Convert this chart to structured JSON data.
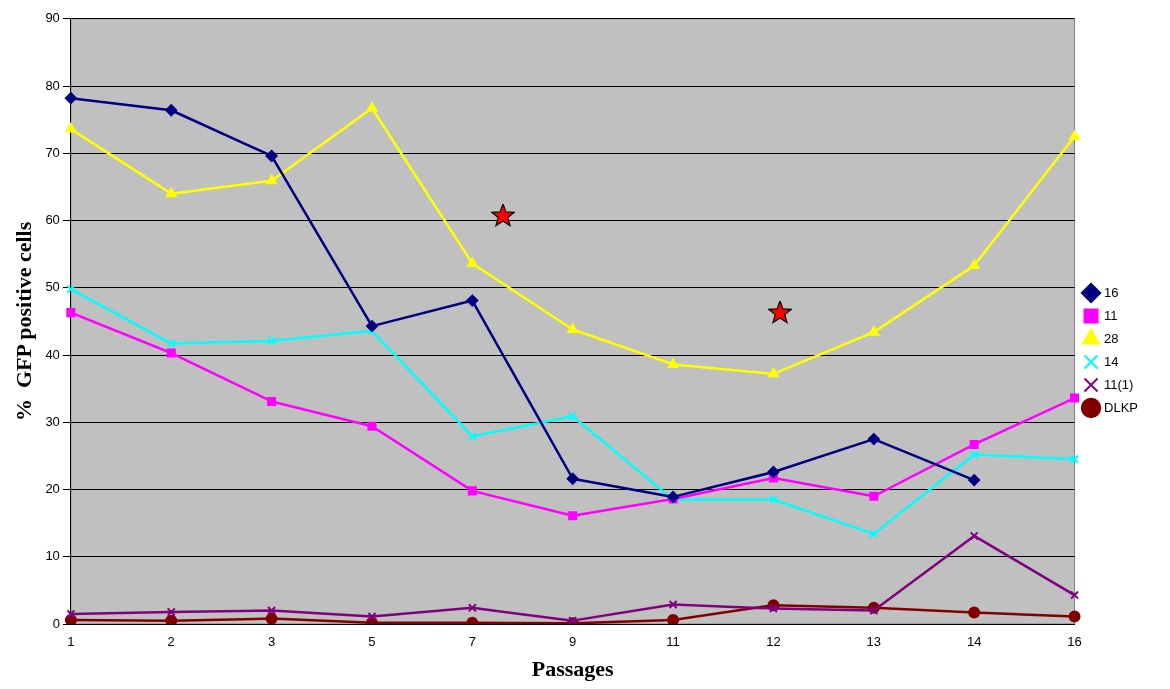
{
  "chart_data": {
    "type": "line",
    "xlabel": "Passages",
    "ylabel": "%  GFP positive cells",
    "categories": [
      "1",
      "2",
      "3",
      "5",
      "7",
      "9",
      "11",
      "12",
      "13",
      "14",
      "16"
    ],
    "ylim": [
      0,
      90
    ],
    "yticks": [
      0,
      10,
      20,
      30,
      40,
      50,
      60,
      70,
      80,
      90
    ],
    "grid": "y",
    "legend": "right",
    "line_style": "solid",
    "series": [
      {
        "name": "16",
        "color": "#000080",
        "marker": "diamond",
        "values": [
          78.2,
          76.4,
          69.6,
          44.3,
          48.1,
          21.6,
          18.9,
          22.6,
          27.5,
          21.4,
          null
        ]
      },
      {
        "name": "11",
        "color": "#ff00ff",
        "marker": "square",
        "values": [
          46.3,
          40.3,
          33.1,
          29.4,
          19.8,
          16.1,
          18.6,
          21.7,
          19.0,
          26.7,
          33.6
        ]
      },
      {
        "name": "28",
        "color": "#ffff00",
        "marker": "triangle",
        "values": [
          73.6,
          64.0,
          65.9,
          76.7,
          53.6,
          43.8,
          38.6,
          37.2,
          43.4,
          53.3,
          72.5
        ]
      },
      {
        "name": "14",
        "color": "#00ffff",
        "marker": "cross",
        "values": [
          49.8,
          41.7,
          42.1,
          43.6,
          27.9,
          30.9,
          18.5,
          18.5,
          13.4,
          25.2,
          24.5
        ]
      },
      {
        "name": "11(1)",
        "color": "#800080",
        "marker": "cross",
        "values": [
          1.5,
          1.8,
          2.0,
          1.1,
          2.4,
          0.5,
          2.9,
          2.3,
          2.0,
          13.1,
          4.3
        ]
      },
      {
        "name": "DLKP",
        "color": "#800000",
        "marker": "circle",
        "values": [
          0.6,
          0.5,
          0.8,
          0.2,
          0.2,
          0.1,
          0.6,
          2.8,
          2.4,
          1.7,
          1.1
        ]
      }
    ]
  }
}
